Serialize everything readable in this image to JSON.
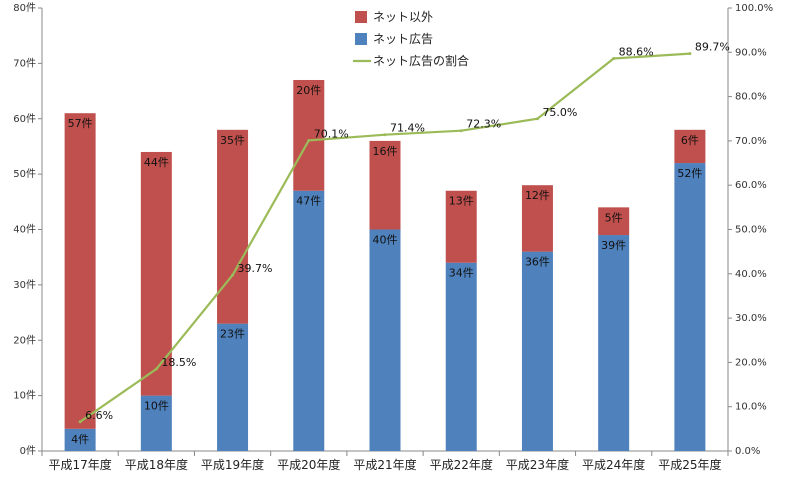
{
  "chart_data": {
    "type": "bar",
    "stacked": true,
    "categories": [
      "平成17年度",
      "平成18年度",
      "平成19年度",
      "平成20年度",
      "平成21年度",
      "平成22年度",
      "平成23年度",
      "平成24年度",
      "平成25年度"
    ],
    "series": [
      {
        "name": "ネット以外",
        "kind": "bar",
        "axis": "left",
        "color": "#c0504d",
        "values": [
          57,
          44,
          35,
          20,
          16,
          13,
          12,
          5,
          6
        ],
        "labels": [
          "57件",
          "44件",
          "35件",
          "20件",
          "16件",
          "13件",
          "12件",
          "5件",
          "6件"
        ]
      },
      {
        "name": "ネット広告",
        "kind": "bar",
        "axis": "left",
        "color": "#4f81bd",
        "values": [
          4,
          10,
          23,
          47,
          40,
          34,
          36,
          39,
          52
        ],
        "labels": [
          "4件",
          "10件",
          "23件",
          "47件",
          "40件",
          "34件",
          "36件",
          "39件",
          "52件"
        ]
      },
      {
        "name": "ネット広告の割合",
        "kind": "line",
        "axis": "right",
        "color": "#9bbb59",
        "values": [
          6.6,
          18.5,
          39.7,
          70.1,
          71.4,
          72.3,
          75.0,
          88.6,
          89.7
        ],
        "labels": [
          "6.6%",
          "18.5%",
          "39.7%",
          "70.1%",
          "71.4%",
          "72.3%",
          "75.0%",
          "88.6%",
          "89.7%"
        ]
      }
    ],
    "y_left": {
      "range": [
        0,
        80
      ],
      "ticks": [
        "0件",
        "10件",
        "20件",
        "30件",
        "40件",
        "50件",
        "60件",
        "70件",
        "80件"
      ]
    },
    "y_right": {
      "range": [
        0,
        100
      ],
      "ticks": [
        "0.0%",
        "10.0%",
        "20.0%",
        "30.0%",
        "40.0%",
        "50.0%",
        "60.0%",
        "70.0%",
        "80.0%",
        "90.0%",
        "100.0%"
      ]
    },
    "grid": false,
    "legend": "top-center"
  }
}
